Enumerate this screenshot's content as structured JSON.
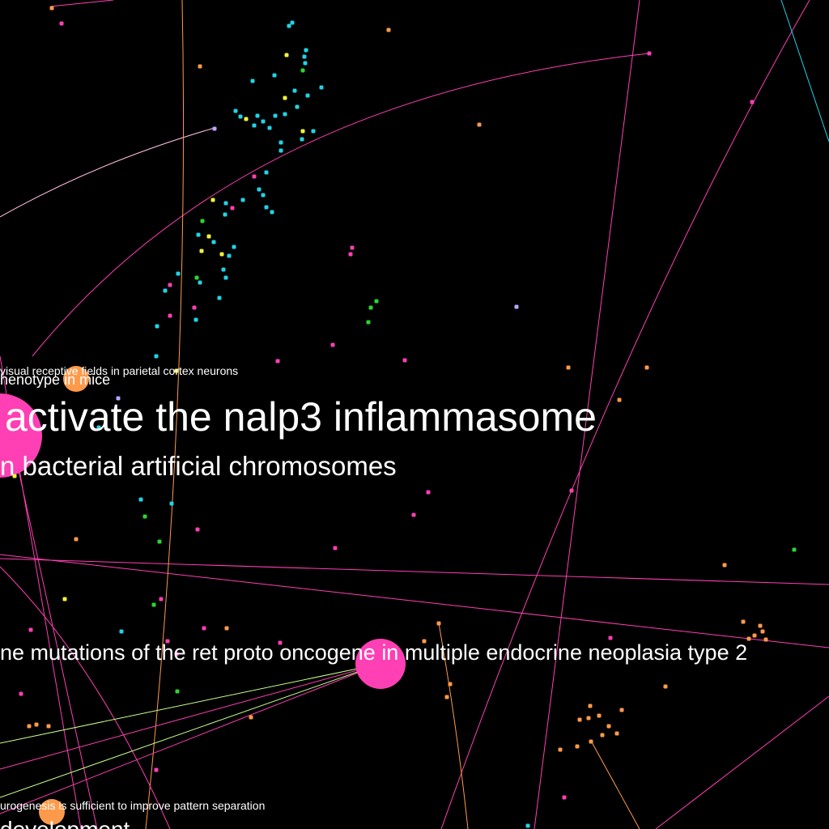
{
  "colors": {
    "background": "#000000",
    "magenta": "#ff3fb4",
    "orange": "#ff9a4a",
    "cyan": "#22d3e6",
    "yellow": "#f2f23a",
    "green": "#2bd62b",
    "lavender": "#b9a6ff",
    "label": "#ffffff"
  },
  "labels": [
    {
      "id": "nalp3",
      "text": "activate the nalp3 inflammasome"
    },
    {
      "id": "bac",
      "text": "n bacterial artificial chromosomes"
    },
    {
      "id": "ret",
      "text": "ne mutations of the ret proto oncogene in multiple endocrine neoplasia type 2"
    },
    {
      "id": "visual",
      "text": "visual receptive fields in parietal cortex neurons"
    },
    {
      "id": "phenotype",
      "text": "henotype in mice"
    },
    {
      "id": "neurogenesis",
      "text": "urogenesis is sufficient to improve pattern separation"
    },
    {
      "id": "development",
      "text": "development"
    }
  ],
  "hubs": [
    {
      "id": "hub-nalp3",
      "color": "magenta"
    },
    {
      "id": "hub-ret",
      "color": "magenta"
    },
    {
      "id": "hub-phenotype",
      "color": "orange"
    },
    {
      "id": "hub-neurogenesis",
      "color": "orange"
    }
  ]
}
